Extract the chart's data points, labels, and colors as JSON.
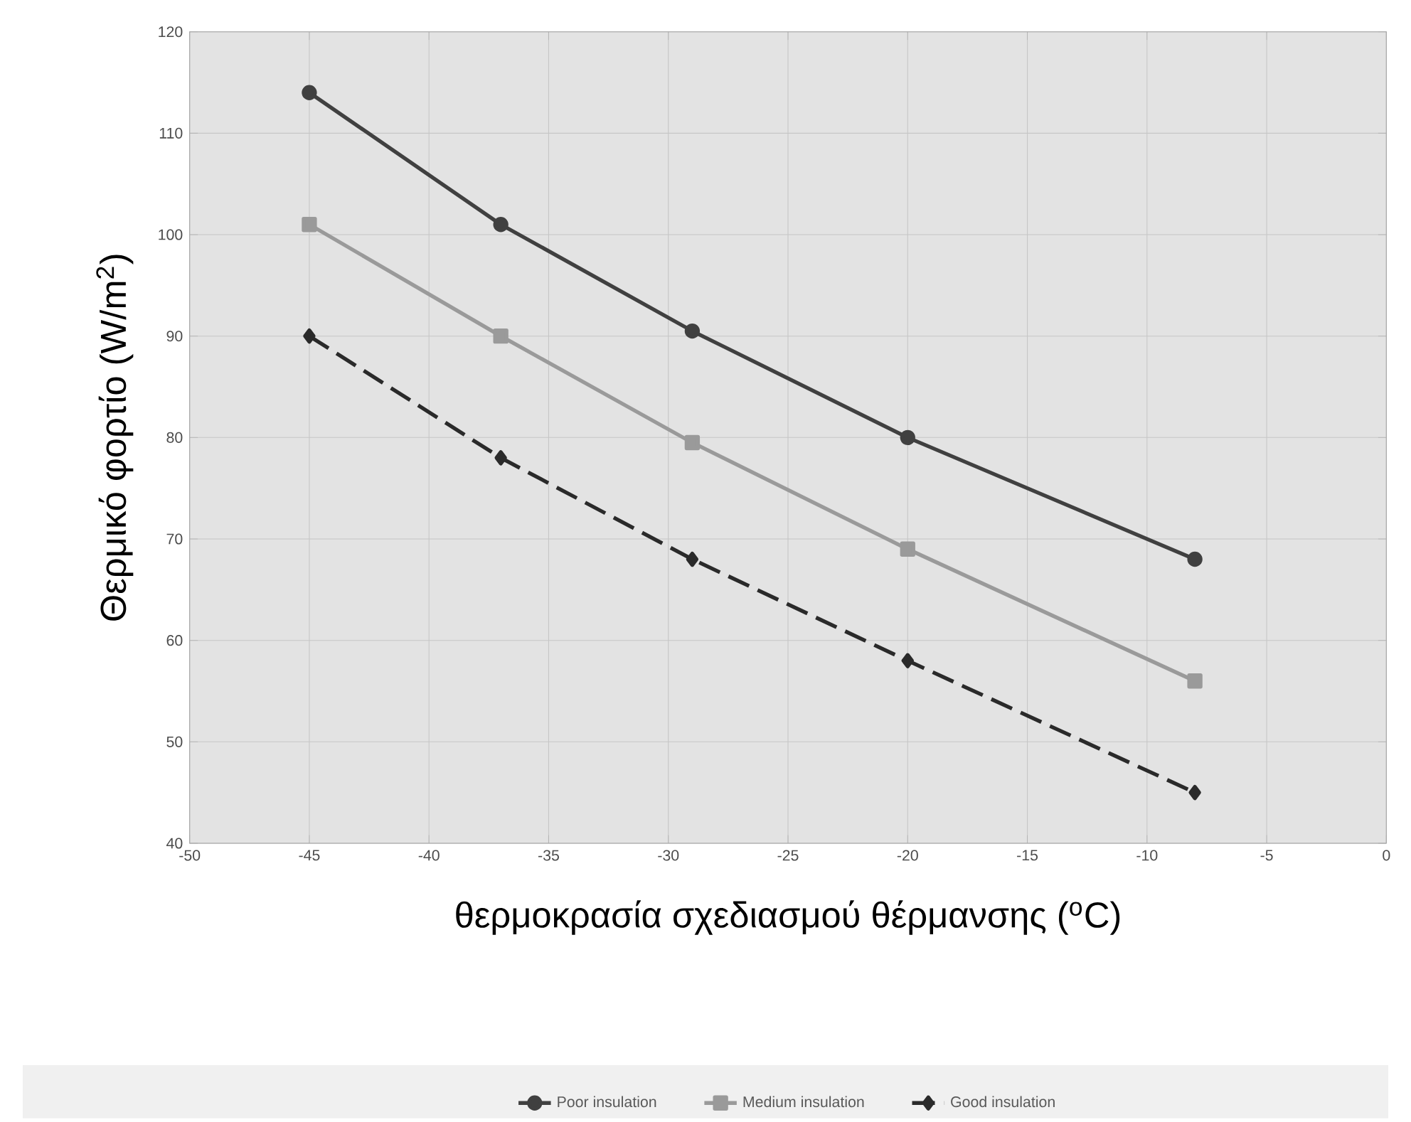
{
  "chart_data": {
    "type": "line",
    "xlabel": "θερμοκρασία σχεδιασμού θέρμανσης ($^{o}$C)",
    "ylabel": "Θερμικό φορτίο (W/m$^{2}$)",
    "x": [
      -45,
      -37,
      -29,
      -20,
      -8
    ],
    "series": [
      {
        "name": "Poor insulation",
        "color": "#404040",
        "marker": "circle",
        "line_style": "solid",
        "values": [
          114,
          101,
          90.5,
          80,
          68
        ]
      },
      {
        "name": "Medium insulation",
        "color": "#9a9a9a",
        "marker": "square",
        "line_style": "solid",
        "values": [
          101,
          90,
          79.5,
          69,
          56
        ]
      },
      {
        "name": "Good insulation",
        "color": "#2a2a2a",
        "marker": "diamond",
        "line_style": "dashed",
        "values": [
          90,
          78,
          68,
          58,
          45
        ]
      }
    ],
    "xlim": [
      -50,
      0
    ],
    "xticks": [
      -50,
      -45,
      -40,
      -35,
      -30,
      -25,
      -20,
      -15,
      -10,
      -5,
      0
    ],
    "ylim": [
      40,
      120
    ],
    "yticks": [
      40,
      50,
      60,
      70,
      80,
      90,
      100,
      110,
      120
    ],
    "grid": true,
    "legend": "bottom"
  }
}
